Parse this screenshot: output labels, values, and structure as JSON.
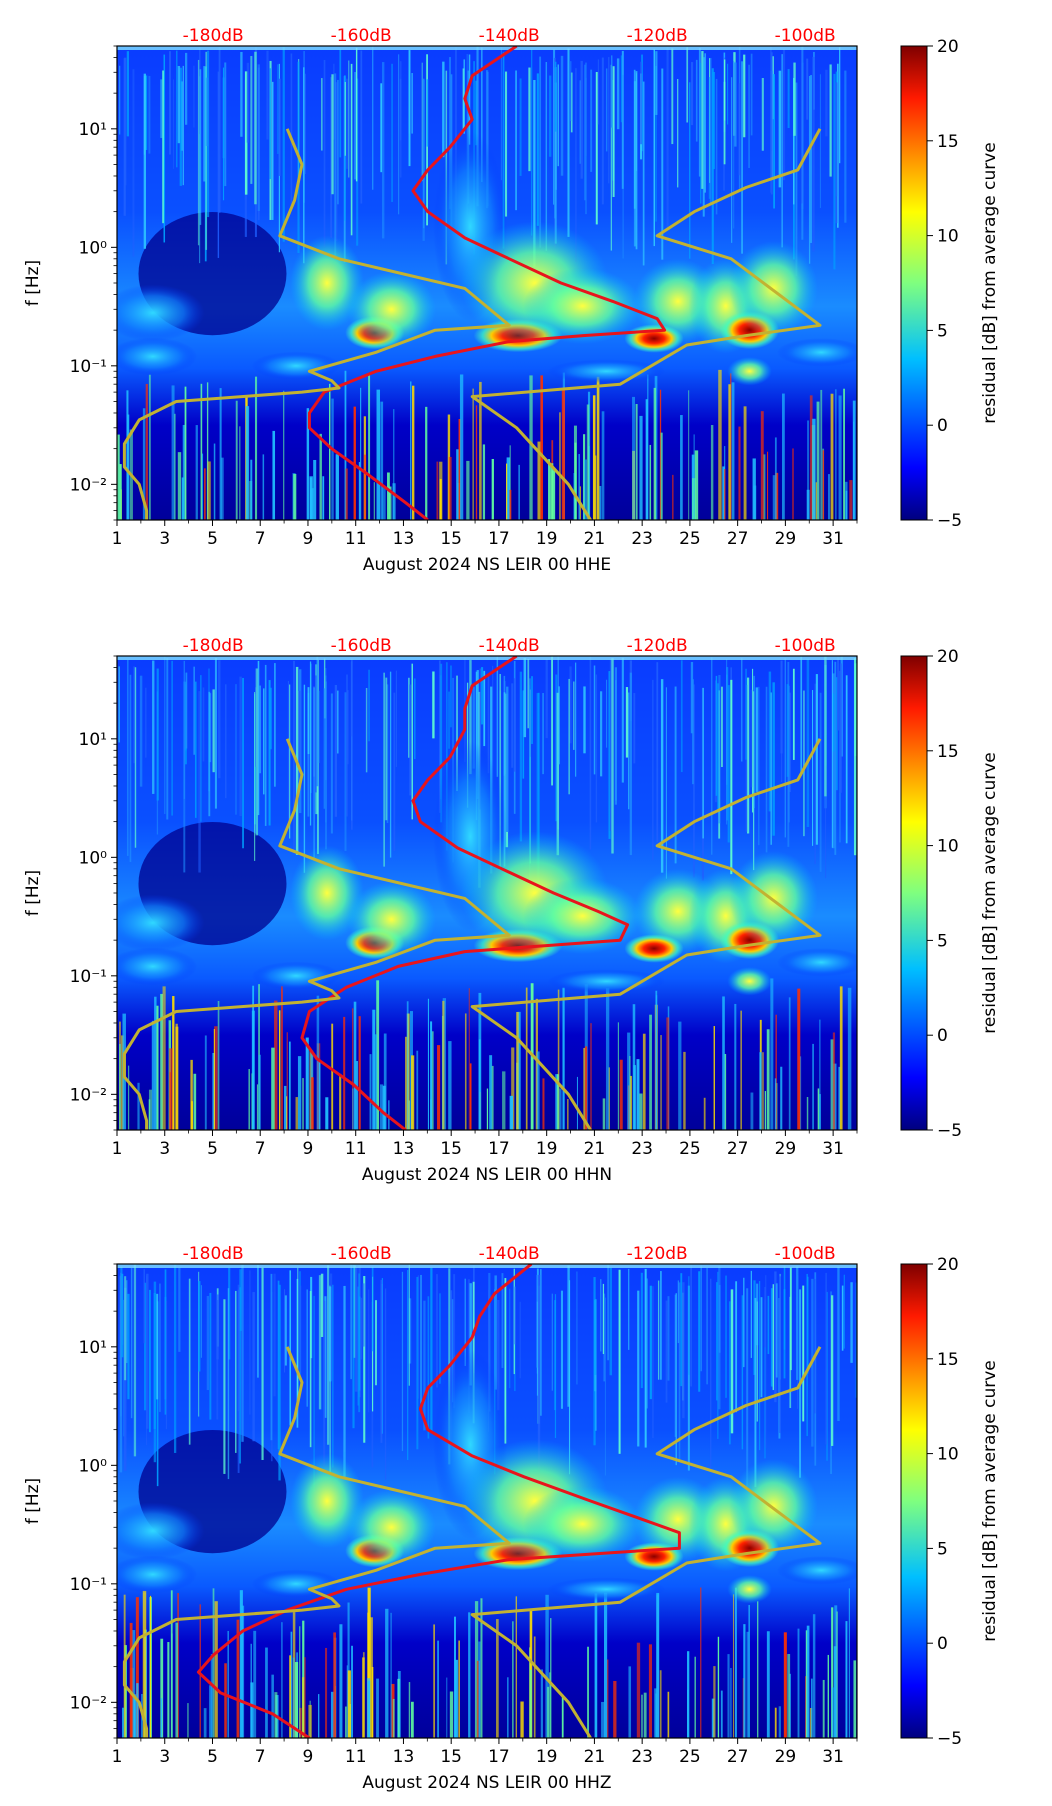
{
  "colors": {
    "noise_curve": "#e8141c",
    "model_curve": "#c2b232",
    "db_label": "#ff0000",
    "colormap": [
      "#00007f",
      "#0000ff",
      "#007fff",
      "#00ffff",
      "#7fff7f",
      "#ffff00",
      "#ff7f00",
      "#ff0000",
      "#7f0000"
    ]
  },
  "chart_data": [
    {
      "type": "heatmap",
      "title": "",
      "xlabel": "August 2024 NS LEIR 00 HHE",
      "ylabel": "f [Hz]",
      "x_ticks": [
        "1",
        "3",
        "5",
        "7",
        "9",
        "11",
        "13",
        "15",
        "17",
        "19",
        "21",
        "23",
        "25",
        "27",
        "29",
        "31"
      ],
      "y_ticks": [
        "10⁻²",
        "10⁻¹",
        "10⁰",
        "10¹"
      ],
      "top_ticks": [
        "-180dB",
        "-160dB",
        "-140dB",
        "-120dB",
        "-100dB"
      ],
      "colorbar": {
        "label": "residual [dB] from average curve",
        "range": [
          -5,
          20
        ],
        "ticks": [
          "−5",
          "0",
          "5",
          "10",
          "15",
          "20"
        ]
      },
      "xlim": [
        1,
        32
      ],
      "ylim_hz": [
        0.005,
        50
      ],
      "top_axis_db_range": [
        -193,
        -93
      ],
      "y_scale": "log",
      "series": [
        {
          "color": "red",
          "axis": "dB (top) vs f",
          "points": [
            [
              -139,
              50
            ],
            [
              -145,
              28
            ],
            [
              -146,
              18
            ],
            [
              -145,
              12
            ],
            [
              -148,
              7
            ],
            [
              -151,
              4.5
            ],
            [
              -153,
              3
            ],
            [
              -151,
              2
            ],
            [
              -146,
              1.2
            ],
            [
              -140,
              0.8
            ],
            [
              -133,
              0.5
            ],
            [
              -126,
              0.35
            ],
            [
              -120,
              0.25
            ],
            [
              -119,
              0.2
            ],
            [
              -130,
              0.18
            ],
            [
              -140,
              0.16
            ],
            [
              -150,
              0.12
            ],
            [
              -158,
              0.09
            ],
            [
              -165,
              0.06
            ],
            [
              -167,
              0.04
            ],
            [
              -167,
              0.03
            ],
            [
              -164,
              0.02
            ],
            [
              -159,
              0.012
            ],
            [
              -154,
              0.007
            ],
            [
              -151,
              0.005
            ]
          ]
        },
        {
          "color": "olive",
          "axis": "dB (top) vs f",
          "points": [
            [
              -170,
              10
            ],
            [
              -168,
              5
            ],
            [
              -169,
              2.5
            ],
            [
              -171,
              1.25
            ],
            [
              -163,
              0.8
            ],
            [
              -146,
              0.45
            ],
            [
              -140,
              0.22
            ],
            [
              -150,
              0.2
            ],
            [
              -158,
              0.13
            ],
            [
              -167,
              0.09
            ],
            [
              -164,
              0.075
            ],
            [
              -163,
              0.065
            ],
            [
              -168,
              0.06
            ],
            [
              -185,
              0.05
            ],
            [
              -190,
              0.035
            ],
            [
              -192,
              0.022
            ],
            [
              -192,
              0.014
            ],
            [
              -190,
              0.01
            ],
            [
              -189,
              0.006
            ],
            [
              -189,
              0.005
            ]
          ]
        },
        {
          "color": "olive",
          "axis": "dB (top) vs f",
          "points": [
            [
              -98,
              10
            ],
            [
              -101,
              4.5
            ],
            [
              -108,
              3.2
            ],
            [
              -115,
              2
            ],
            [
              -120,
              1.25
            ],
            [
              -110,
              0.8
            ],
            [
              -98,
              0.22
            ],
            [
              -108,
              0.18
            ],
            [
              -116,
              0.15
            ],
            [
              -125,
              0.07
            ],
            [
              -145,
              0.055
            ],
            [
              -139,
              0.03
            ],
            [
              -132,
              0.01
            ],
            [
              -129,
              0.005
            ]
          ]
        }
      ]
    },
    {
      "type": "heatmap",
      "title": "",
      "xlabel": "August 2024 NS LEIR 00 HHN",
      "ylabel": "f [Hz]",
      "x_ticks": [
        "1",
        "3",
        "5",
        "7",
        "9",
        "11",
        "13",
        "15",
        "17",
        "19",
        "21",
        "23",
        "25",
        "27",
        "29",
        "31"
      ],
      "y_ticks": [
        "10⁻²",
        "10⁻¹",
        "10⁰",
        "10¹"
      ],
      "top_ticks": [
        "-180dB",
        "-160dB",
        "-140dB",
        "-120dB",
        "-100dB"
      ],
      "colorbar": {
        "label": "residual [dB] from average curve",
        "range": [
          -5,
          20
        ],
        "ticks": [
          "−5",
          "0",
          "5",
          "10",
          "15",
          "20"
        ]
      },
      "xlim": [
        1,
        32
      ],
      "ylim_hz": [
        0.005,
        50
      ],
      "top_axis_db_range": [
        -193,
        -93
      ],
      "y_scale": "log",
      "series": [
        {
          "color": "red",
          "axis": "dB (top) vs f",
          "points": [
            [
              -139,
              50
            ],
            [
              -145,
              28
            ],
            [
              -146,
              18
            ],
            [
              -146,
              12
            ],
            [
              -148,
              7
            ],
            [
              -151,
              4.5
            ],
            [
              -153,
              3
            ],
            [
              -152,
              2
            ],
            [
              -147,
              1.2
            ],
            [
              -141,
              0.8
            ],
            [
              -134,
              0.5
            ],
            [
              -128,
              0.35
            ],
            [
              -124,
              0.27
            ],
            [
              -125,
              0.2
            ],
            [
              -135,
              0.18
            ],
            [
              -146,
              0.16
            ],
            [
              -155,
              0.12
            ],
            [
              -162,
              0.08
            ],
            [
              -167,
              0.05
            ],
            [
              -168,
              0.03
            ],
            [
              -166,
              0.02
            ],
            [
              -161,
              0.012
            ],
            [
              -157,
              0.007
            ],
            [
              -154,
              0.005
            ]
          ]
        },
        {
          "color": "olive",
          "axis": "dB (top) vs f",
          "points": [
            [
              -170,
              10
            ],
            [
              -168,
              5
            ],
            [
              -169,
              2.5
            ],
            [
              -171,
              1.25
            ],
            [
              -163,
              0.8
            ],
            [
              -146,
              0.45
            ],
            [
              -140,
              0.22
            ],
            [
              -150,
              0.2
            ],
            [
              -158,
              0.13
            ],
            [
              -167,
              0.09
            ],
            [
              -164,
              0.075
            ],
            [
              -163,
              0.065
            ],
            [
              -168,
              0.06
            ],
            [
              -185,
              0.05
            ],
            [
              -190,
              0.035
            ],
            [
              -192,
              0.022
            ],
            [
              -192,
              0.014
            ],
            [
              -190,
              0.01
            ],
            [
              -189,
              0.006
            ],
            [
              -189,
              0.005
            ]
          ]
        },
        {
          "color": "olive",
          "axis": "dB (top) vs f",
          "points": [
            [
              -98,
              10
            ],
            [
              -101,
              4.5
            ],
            [
              -108,
              3.2
            ],
            [
              -115,
              2
            ],
            [
              -120,
              1.25
            ],
            [
              -110,
              0.8
            ],
            [
              -98,
              0.22
            ],
            [
              -108,
              0.18
            ],
            [
              -116,
              0.15
            ],
            [
              -125,
              0.07
            ],
            [
              -145,
              0.055
            ],
            [
              -139,
              0.03
            ],
            [
              -132,
              0.01
            ],
            [
              -129,
              0.005
            ]
          ]
        }
      ]
    },
    {
      "type": "heatmap",
      "title": "",
      "xlabel": "August 2024 NS LEIR 00 HHZ",
      "ylabel": "f [Hz]",
      "x_ticks": [
        "1",
        "3",
        "5",
        "7",
        "9",
        "11",
        "13",
        "15",
        "17",
        "19",
        "21",
        "23",
        "25",
        "27",
        "29",
        "31"
      ],
      "y_ticks": [
        "10⁻²",
        "10⁻¹",
        "10⁰",
        "10¹"
      ],
      "top_ticks": [
        "-180dB",
        "-160dB",
        "-140dB",
        "-120dB",
        "-100dB"
      ],
      "colorbar": {
        "label": "residual [dB] from average curve",
        "range": [
          -5,
          20
        ],
        "ticks": [
          "−5",
          "0",
          "5",
          "10",
          "15",
          "20"
        ]
      },
      "xlim": [
        1,
        32
      ],
      "ylim_hz": [
        0.005,
        50
      ],
      "top_axis_db_range": [
        -193,
        -93
      ],
      "y_scale": "log",
      "series": [
        {
          "color": "red",
          "axis": "dB (top) vs f",
          "points": [
            [
              -137,
              50
            ],
            [
              -142,
              28
            ],
            [
              -144,
              18
            ],
            [
              -145,
              12
            ],
            [
              -148,
              7
            ],
            [
              -151,
              4.5
            ],
            [
              -152,
              3
            ],
            [
              -151,
              2
            ],
            [
              -145,
              1.2
            ],
            [
              -138,
              0.8
            ],
            [
              -129,
              0.5
            ],
            [
              -122,
              0.35
            ],
            [
              -117,
              0.27
            ],
            [
              -117,
              0.2
            ],
            [
              -128,
              0.18
            ],
            [
              -140,
              0.16
            ],
            [
              -152,
              0.12
            ],
            [
              -162,
              0.09
            ],
            [
              -170,
              0.06
            ],
            [
              -176,
              0.04
            ],
            [
              -180,
              0.025
            ],
            [
              -182,
              0.018
            ],
            [
              -179,
              0.012
            ],
            [
              -172,
              0.008
            ],
            [
              -167,
              0.005
            ]
          ]
        },
        {
          "color": "olive",
          "axis": "dB (top) vs f",
          "points": [
            [
              -170,
              10
            ],
            [
              -168,
              5
            ],
            [
              -169,
              2.5
            ],
            [
              -171,
              1.25
            ],
            [
              -163,
              0.8
            ],
            [
              -146,
              0.45
            ],
            [
              -140,
              0.22
            ],
            [
              -150,
              0.2
            ],
            [
              -158,
              0.13
            ],
            [
              -167,
              0.09
            ],
            [
              -164,
              0.075
            ],
            [
              -163,
              0.065
            ],
            [
              -168,
              0.06
            ],
            [
              -185,
              0.05
            ],
            [
              -190,
              0.035
            ],
            [
              -192,
              0.022
            ],
            [
              -192,
              0.014
            ],
            [
              -190,
              0.01
            ],
            [
              -189,
              0.006
            ],
            [
              -189,
              0.005
            ]
          ]
        },
        {
          "color": "olive",
          "axis": "dB (top) vs f",
          "points": [
            [
              -98,
              10
            ],
            [
              -101,
              4.5
            ],
            [
              -108,
              3.2
            ],
            [
              -115,
              2
            ],
            [
              -120,
              1.25
            ],
            [
              -110,
              0.8
            ],
            [
              -98,
              0.22
            ],
            [
              -108,
              0.18
            ],
            [
              -116,
              0.15
            ],
            [
              -125,
              0.07
            ],
            [
              -145,
              0.055
            ],
            [
              -139,
              0.03
            ],
            [
              -132,
              0.01
            ],
            [
              -129,
              0.005
            ]
          ]
        }
      ]
    }
  ]
}
